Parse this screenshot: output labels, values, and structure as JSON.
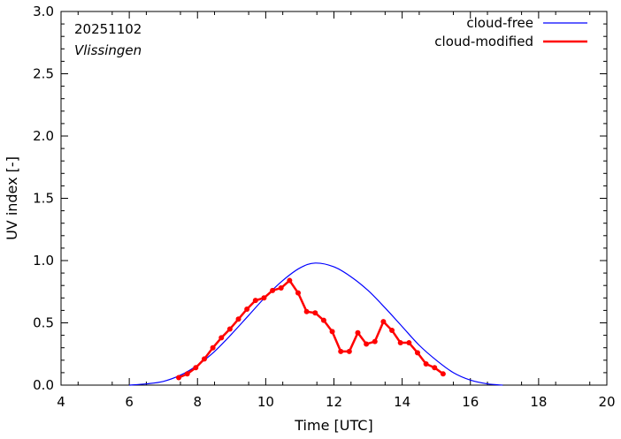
{
  "chart_data": {
    "type": "line",
    "annotations": {
      "date": "20251102",
      "station": "Vlissingen"
    },
    "xlabel": "Time  [UTC]",
    "ylabel": "UV index  [-]",
    "xlim": [
      4,
      20
    ],
    "ylim": [
      0,
      3.0
    ],
    "x_ticks": [
      4,
      6,
      8,
      10,
      12,
      14,
      16,
      18,
      20
    ],
    "y_ticks": [
      "0.0",
      "0.5",
      "1.0",
      "1.5",
      "2.0",
      "2.5",
      "3.0"
    ],
    "legend_position": "top-right",
    "series": [
      {
        "name": "cloud-free",
        "color": "#0000ff",
        "style": "line",
        "x": [
          6.0,
          6.5,
          7.0,
          7.5,
          8.0,
          8.5,
          9.0,
          9.5,
          10.0,
          10.5,
          11.0,
          11.45,
          12.0,
          12.5,
          13.0,
          13.5,
          14.0,
          14.5,
          15.0,
          15.5,
          16.0,
          16.5,
          16.95
        ],
        "y": [
          0.0,
          0.01,
          0.03,
          0.08,
          0.16,
          0.27,
          0.41,
          0.56,
          0.71,
          0.84,
          0.94,
          0.98,
          0.95,
          0.87,
          0.76,
          0.62,
          0.47,
          0.32,
          0.2,
          0.1,
          0.04,
          0.01,
          0.0
        ]
      },
      {
        "name": "cloud-modified",
        "color": "#ff0000",
        "style": "linespoints",
        "x": [
          7.45,
          7.7,
          7.95,
          8.2,
          8.45,
          8.7,
          8.95,
          9.2,
          9.45,
          9.7,
          9.95,
          10.2,
          10.45,
          10.7,
          10.95,
          11.2,
          11.45,
          11.7,
          11.95,
          12.2,
          12.45,
          12.7,
          12.95,
          13.2,
          13.45,
          13.7,
          13.95,
          14.2,
          14.45,
          14.7,
          14.95,
          15.2
        ],
        "y": [
          0.06,
          0.09,
          0.14,
          0.21,
          0.3,
          0.38,
          0.45,
          0.53,
          0.61,
          0.68,
          0.7,
          0.76,
          0.78,
          0.84,
          0.74,
          0.59,
          0.58,
          0.52,
          0.43,
          0.27,
          0.27,
          0.42,
          0.33,
          0.35,
          0.51,
          0.44,
          0.34,
          0.34,
          0.26,
          0.17,
          0.14,
          0.09
        ]
      }
    ]
  }
}
